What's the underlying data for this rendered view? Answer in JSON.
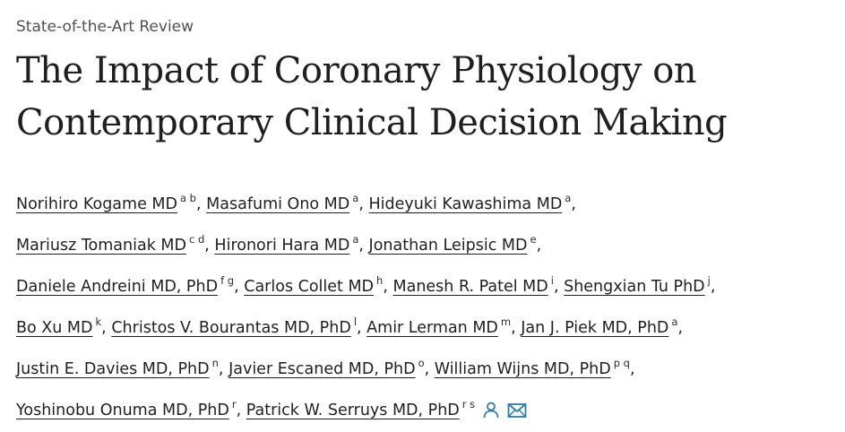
{
  "article_type": "State-of-the-Art Review",
  "title": {
    "line1": "The Impact of Coronary Physiology on",
    "line2": "Contemporary Clinical Decision Making"
  },
  "authors": [
    {
      "name": "Norihiro Kogame MD",
      "aff": "a b"
    },
    {
      "name": "Masafumi Ono MD",
      "aff": "a"
    },
    {
      "name": "Hideyuki Kawashima MD",
      "aff": "a"
    },
    {
      "name": "Mariusz Tomaniak MD",
      "aff": "c d"
    },
    {
      "name": "Hironori Hara MD",
      "aff": "a"
    },
    {
      "name": "Jonathan Leipsic MD",
      "aff": "e"
    },
    {
      "name": "Daniele Andreini MD, PhD",
      "aff": "f g"
    },
    {
      "name": "Carlos Collet MD",
      "aff": "h"
    },
    {
      "name": "Manesh R. Patel MD",
      "aff": "i"
    },
    {
      "name": "Shengxian Tu PhD",
      "aff": "j"
    },
    {
      "name": "Bo Xu MD",
      "aff": "k"
    },
    {
      "name": "Christos V. Bourantas MD, PhD",
      "aff": "l"
    },
    {
      "name": "Amir Lerman MD",
      "aff": "m"
    },
    {
      "name": "Jan J. Piek MD, PhD",
      "aff": "a"
    },
    {
      "name": "Justin E. Davies MD, PhD",
      "aff": "n"
    },
    {
      "name": "Javier Escaned MD, PhD",
      "aff": "o"
    },
    {
      "name": "William Wijns MD, PhD",
      "aff": "p q"
    },
    {
      "name": "Yoshinobu Onuma MD, PhD",
      "aff": "r"
    },
    {
      "name": "Patrick W. Serruys MD, PhD",
      "aff": "r s"
    }
  ],
  "separator": ",",
  "icons": {
    "person": "person-icon",
    "email": "envelope-icon"
  },
  "colors": {
    "text": "#1f1f1f",
    "icon_accent": "#2a7ab5"
  }
}
